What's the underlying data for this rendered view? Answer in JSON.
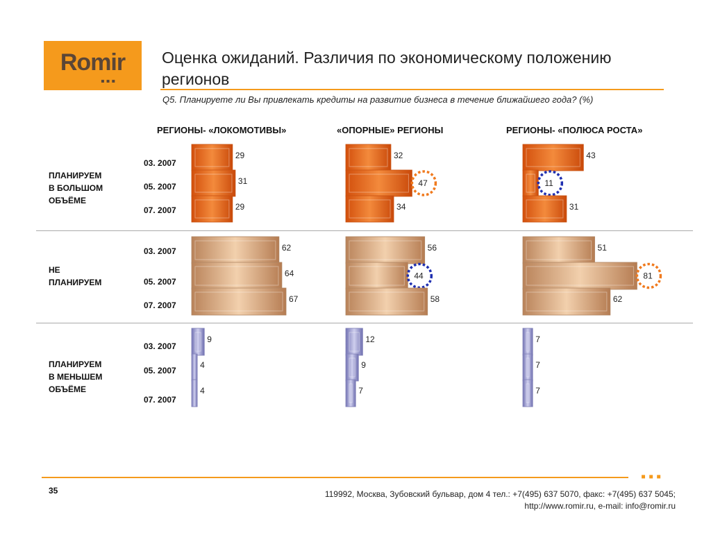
{
  "logo": {
    "text": "Romir"
  },
  "header": {
    "title": "Оценка ожиданий. Различия по экономическому положению регионов",
    "question": "Q5. Планируете ли Вы привлекать кредиты на развитие бизнеса в течение ближайшего года? (%)"
  },
  "colors": {
    "accent": "#f59a1c",
    "row1_bar": "#e8621a",
    "row2_bar": "#c9956a",
    "row3_bar": "#8f8fc4",
    "circle_orange": "#f07a1e",
    "circle_blue": "#1f2fb0"
  },
  "chart_data": {
    "type": "bar",
    "orientation": "horizontal",
    "columns": [
      "РЕГИОНЫ- «ЛОКОМОТИВЫ»",
      "«ОПОРНЫЕ» РЕГИОНЫ",
      "РЕГИОНЫ- «ПОЛЮСА РОСТА»"
    ],
    "dates": [
      "03. 2007",
      "05. 2007",
      "07. 2007"
    ],
    "rows": [
      {
        "label": [
          "ПЛАНИРУЕМ",
          "В БОЛЬШОМ",
          "ОБЪЁМЕ"
        ],
        "values": [
          [
            29,
            31,
            29
          ],
          [
            32,
            47,
            34
          ],
          [
            43,
            11,
            31
          ]
        ],
        "highlights": [
          {
            "column": 1,
            "date": 1,
            "color": "orange"
          },
          {
            "column": 2,
            "date": 1,
            "color": "blue"
          }
        ]
      },
      {
        "label": [
          "НЕ",
          "ПЛАНИРУЕМ"
        ],
        "values": [
          [
            62,
            64,
            67
          ],
          [
            56,
            44,
            58
          ],
          [
            51,
            81,
            62
          ]
        ],
        "highlights": [
          {
            "column": 1,
            "date": 1,
            "color": "blue"
          },
          {
            "column": 2,
            "date": 1,
            "color": "orange"
          }
        ]
      },
      {
        "label": [
          "ПЛАНИРУЕМ",
          "В МЕНЬШЕМ",
          "ОБЪЁМЕ"
        ],
        "values": [
          [
            9,
            4,
            4
          ],
          [
            12,
            9,
            7
          ],
          [
            7,
            7,
            7
          ]
        ],
        "highlights": []
      }
    ]
  },
  "footer": {
    "page": "35",
    "address": "119992, Москва, Зубовский бульвар, дом 4   тел.: +7(495) 637 5070, факс: +7(495) 637 5045;",
    "web": "http://www.romir.ru, e-mail: info@romir.ru"
  }
}
